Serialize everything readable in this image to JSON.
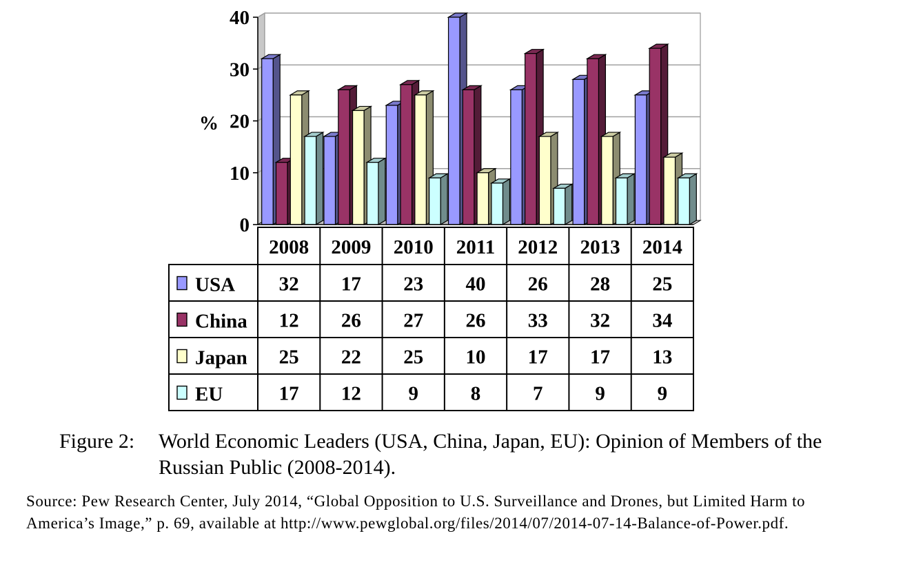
{
  "chart_data": {
    "type": "bar",
    "title": "",
    "xlabel": "",
    "ylabel": "%",
    "ylim": [
      0,
      40
    ],
    "yticks": [
      "0",
      "10",
      "20",
      "30",
      "40"
    ],
    "categories": [
      "2008",
      "2009",
      "2010",
      "2011",
      "2012",
      "2013",
      "2014"
    ],
    "series": [
      {
        "name": "USA",
        "values": [
          32,
          17,
          23,
          40,
          26,
          28,
          25
        ],
        "color": "#9999ff"
      },
      {
        "name": "China",
        "values": [
          12,
          26,
          27,
          26,
          33,
          32,
          34
        ],
        "color": "#993366"
      },
      {
        "name": "Japan",
        "values": [
          25,
          22,
          25,
          10,
          17,
          17,
          13
        ],
        "color": "#ffffcc"
      },
      {
        "name": "EU",
        "values": [
          17,
          12,
          9,
          8,
          7,
          9,
          9
        ],
        "color": "#ccffff"
      }
    ],
    "grid": true,
    "data_table": true
  },
  "caption": {
    "label": "Figure 2:",
    "text": "World Economic Leaders (USA, China, Japan, EU): Opinion of Members of the Russian Public (2008-2014)."
  },
  "source": "Source: Pew Research Center, July 2014, “Global Opposition to U.S. Surveillance and Drones, but Limited Harm to America’s Image,” p. 69, available at http://www.pewglobal.org/files/2014/07/2014-07-14-Balance-of-Power.pdf."
}
